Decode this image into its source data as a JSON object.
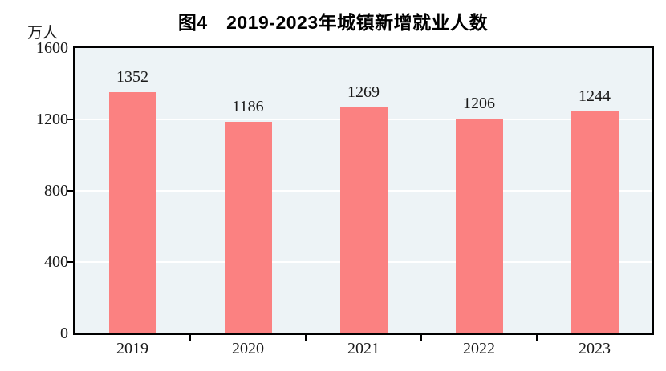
{
  "chart_data": {
    "type": "bar",
    "title": "图4　2019-2023年城镇新增就业人数",
    "unit_label": "万人",
    "categories": [
      "2019",
      "2020",
      "2021",
      "2022",
      "2023"
    ],
    "values": [
      1352,
      1186,
      1269,
      1206,
      1244
    ],
    "ylim": [
      0,
      1600
    ],
    "yticks": [
      0,
      400,
      800,
      1200,
      1600
    ],
    "xlabel": "",
    "ylabel": "万人",
    "legend_position": "none",
    "grid": "horizontal",
    "colors": {
      "bar_fill": "#fb8181",
      "plot_background": "#edf3f6",
      "gridline": "#ffffff",
      "axis_frame": "#000000",
      "text": "#1a1a1a"
    }
  }
}
